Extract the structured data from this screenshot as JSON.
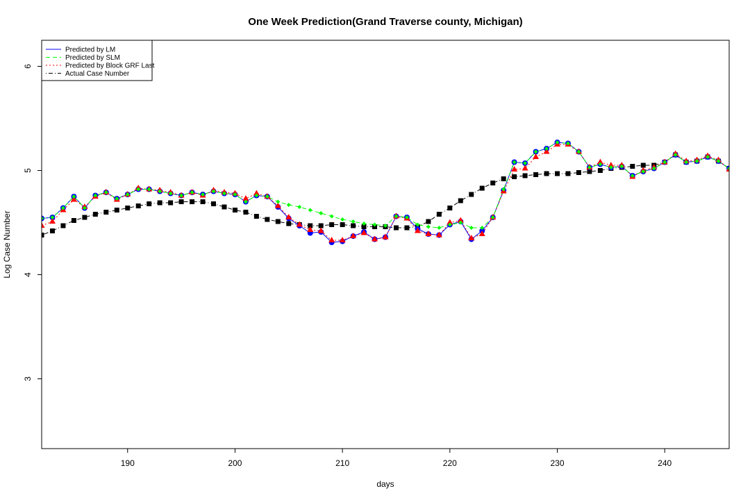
{
  "chart_data": {
    "type": "line",
    "title": "One Week Prediction(Grand Traverse county, Michigan)",
    "xlabel": "days",
    "ylabel": "Log Case Number",
    "xlim": [
      182,
      246
    ],
    "ylim": [
      2.33,
      6.25
    ],
    "xticks": [
      190,
      200,
      210,
      220,
      230,
      240
    ],
    "yticks": [
      3,
      4,
      5,
      6
    ],
    "grid": false,
    "legend_position": "top-left",
    "x": [
      182,
      183,
      184,
      185,
      186,
      187,
      188,
      189,
      190,
      191,
      192,
      193,
      194,
      195,
      196,
      197,
      198,
      199,
      200,
      201,
      202,
      203,
      204,
      205,
      206,
      207,
      208,
      209,
      210,
      211,
      212,
      213,
      214,
      215,
      216,
      217,
      218,
      219,
      220,
      221,
      222,
      223,
      224,
      225,
      226,
      227,
      228,
      229,
      230,
      231,
      232,
      233,
      234,
      235,
      236,
      237,
      238,
      239,
      240,
      241,
      242,
      243,
      244,
      245,
      246
    ],
    "series": [
      {
        "name": "Predicted by LM",
        "color": "#0000ff",
        "line_style": "solid",
        "marker": "circle",
        "values": [
          4.54,
          4.55,
          4.64,
          4.75,
          4.64,
          4.76,
          4.79,
          4.73,
          4.77,
          4.82,
          4.82,
          4.8,
          4.78,
          4.76,
          4.79,
          4.77,
          4.8,
          4.78,
          4.77,
          4.7,
          4.76,
          4.75,
          4.65,
          4.54,
          4.47,
          4.4,
          4.41,
          4.31,
          4.32,
          4.37,
          4.41,
          4.34,
          4.36,
          4.56,
          4.55,
          4.44,
          4.39,
          4.38,
          4.48,
          4.51,
          4.34,
          4.42,
          4.55,
          4.81,
          5.08,
          5.07,
          5.18,
          5.21,
          5.27,
          5.26,
          5.18,
          5.03,
          5.06,
          5.03,
          5.04,
          4.95,
          4.99,
          5.02,
          5.08,
          5.15,
          5.08,
          5.09,
          5.13,
          5.09,
          5.02
        ]
      },
      {
        "name": "Predicted by SLM",
        "color": "#00ff00",
        "line_style": "dashed",
        "marker": "diamond",
        "values": [
          4.54,
          4.55,
          4.64,
          4.75,
          4.64,
          4.76,
          4.79,
          4.73,
          4.77,
          4.82,
          4.82,
          4.8,
          4.78,
          4.76,
          4.79,
          4.77,
          4.8,
          4.78,
          4.77,
          4.7,
          4.76,
          4.75,
          4.7,
          4.67,
          4.65,
          4.62,
          4.59,
          4.56,
          4.53,
          4.51,
          4.49,
          4.48,
          4.47,
          4.56,
          4.55,
          4.48,
          4.46,
          4.45,
          4.48,
          4.5,
          4.45,
          4.45,
          4.55,
          4.82,
          5.08,
          5.07,
          5.18,
          5.21,
          5.27,
          5.26,
          5.18,
          5.03,
          5.06,
          5.03,
          5.04,
          4.95,
          4.99,
          5.02,
          5.08,
          5.15,
          5.08,
          5.09,
          5.13,
          5.09,
          5.02
        ]
      },
      {
        "name": "Predicted by Block GRF Last",
        "color": "#ff0000",
        "line_style": "dotted",
        "marker": "triangle",
        "values": [
          4.47,
          4.51,
          4.62,
          4.72,
          4.65,
          4.75,
          4.79,
          4.72,
          4.77,
          4.83,
          4.82,
          4.81,
          4.79,
          4.76,
          4.79,
          4.76,
          4.81,
          4.79,
          4.78,
          4.73,
          4.78,
          4.75,
          4.66,
          4.55,
          4.48,
          4.43,
          4.42,
          4.33,
          4.33,
          4.37,
          4.4,
          4.34,
          4.36,
          4.56,
          4.54,
          4.42,
          4.39,
          4.38,
          4.5,
          4.52,
          4.35,
          4.39,
          4.55,
          4.8,
          5.01,
          5.02,
          5.13,
          5.18,
          5.25,
          5.25,
          5.18,
          5.03,
          5.08,
          5.05,
          5.05,
          4.94,
          5.0,
          5.03,
          5.08,
          5.16,
          5.09,
          5.1,
          5.14,
          5.1,
          5.01
        ]
      },
      {
        "name": "Actual Case Number",
        "color": "#000000",
        "line_style": "dotdash",
        "marker": "square",
        "values": [
          4.38,
          4.42,
          4.47,
          4.52,
          4.55,
          4.58,
          4.6,
          4.62,
          4.64,
          4.66,
          4.68,
          4.69,
          4.69,
          4.7,
          4.7,
          4.7,
          4.68,
          4.65,
          4.62,
          4.6,
          4.56,
          4.53,
          4.51,
          4.49,
          4.48,
          4.47,
          4.47,
          4.48,
          4.48,
          4.47,
          4.46,
          4.46,
          4.46,
          4.45,
          4.45,
          4.46,
          4.51,
          4.58,
          4.64,
          4.71,
          4.77,
          4.83,
          4.88,
          4.92,
          4.94,
          4.95,
          4.96,
          4.97,
          4.97,
          4.97,
          4.98,
          4.99,
          5.0,
          5.02,
          5.03,
          5.04,
          5.05,
          5.05,
          5.08,
          5.15,
          5.08,
          5.09,
          5.13,
          5.09,
          5.02
        ]
      }
    ]
  }
}
